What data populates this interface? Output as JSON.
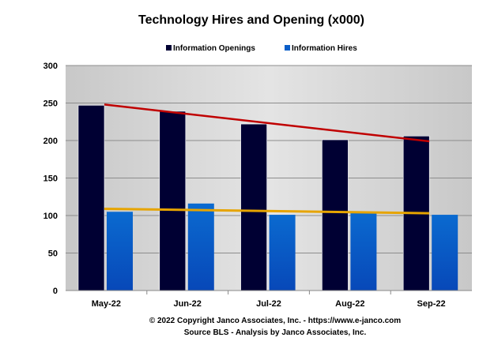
{
  "chart_data": {
    "type": "bar",
    "title": "Technology Hires and Opening (x000)",
    "categories": [
      "May-22",
      "Jun-22",
      "Jul-22",
      "Aug-22",
      "Sep-22"
    ],
    "series": [
      {
        "name": "Information Openings",
        "color": "#000033",
        "values": [
          247,
          239,
          222,
          201,
          206
        ],
        "trendline": {
          "color": "#c00000",
          "start": 248,
          "end": 199
        }
      },
      {
        "name": "Information Hires",
        "color": "#0a5ec8",
        "values": [
          105,
          116,
          101,
          105,
          101
        ],
        "trendline": {
          "color": "#e6a400",
          "start": 109,
          "end": 103
        }
      }
    ],
    "yticks": [
      0,
      50,
      100,
      150,
      200,
      250,
      300
    ],
    "ylim": [
      0,
      300
    ],
    "grid": true,
    "legend_position": "top",
    "footer": [
      "© 2022 Copyright Janco Associates, Inc. - https://www.e-janco.com",
      "Source BLS - Analysis by Janco Associates, Inc."
    ]
  }
}
